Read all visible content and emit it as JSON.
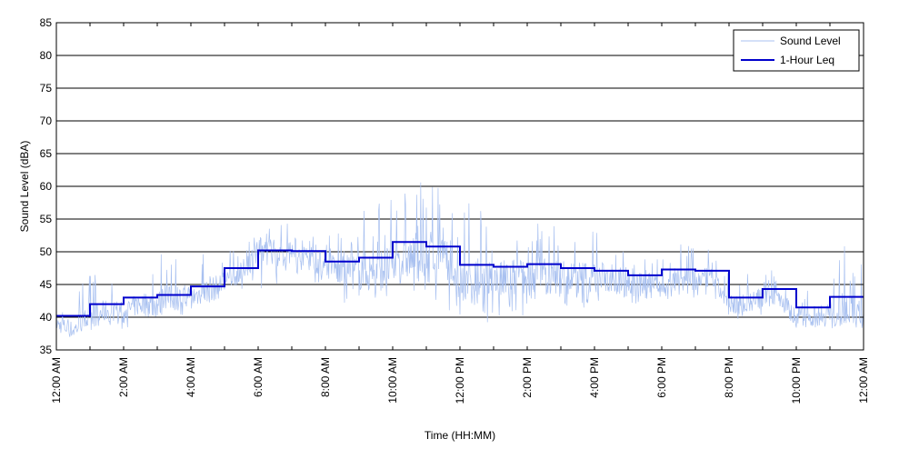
{
  "chart_data": {
    "type": "line",
    "title": "",
    "xlabel": "Time (HH:MM)",
    "ylabel": "Sound Level (dBA)",
    "ylim": [
      35,
      85
    ],
    "yticks": [
      35,
      40,
      45,
      50,
      55,
      60,
      65,
      70,
      75,
      80,
      85
    ],
    "xlim": [
      0,
      24
    ],
    "xticks": [
      0,
      2,
      4,
      6,
      8,
      10,
      12,
      14,
      16,
      18,
      20,
      22,
      24
    ],
    "xtick_labels": [
      "12:00 AM",
      "2:00 AM",
      "4:00 AM",
      "6:00 AM",
      "8:00 AM",
      "10:00 AM",
      "12:00 PM",
      "2:00 PM",
      "4:00 PM",
      "6:00 PM",
      "8:00 PM",
      "10:00 PM",
      "12:00 AM"
    ],
    "grid": "horizontal",
    "legend_position": "top-right",
    "colors": {
      "sound_level": "#a8c0f0",
      "leq": "#0000cc"
    },
    "series": [
      {
        "name": "Sound Level",
        "style": "thin",
        "x": [
          0,
          0.5,
          1,
          1.5,
          2,
          2.5,
          3,
          3.5,
          4,
          4.5,
          5,
          5.5,
          6,
          6.5,
          7,
          7.5,
          8,
          8.5,
          9,
          9.5,
          10,
          10.5,
          11,
          11.5,
          12,
          12.5,
          13,
          13.5,
          14,
          14.5,
          15,
          15.5,
          16,
          16.5,
          17,
          17.5,
          18,
          18.5,
          19,
          19.5,
          20,
          20.5,
          21,
          21.5,
          22,
          22.5,
          23,
          23.5,
          24
        ],
        "values": [
          39,
          38,
          40,
          41,
          41,
          42,
          42,
          43,
          43,
          44,
          45,
          47,
          50,
          50,
          49,
          49,
          48,
          47,
          47,
          47,
          48,
          49,
          49,
          49,
          45,
          45,
          45,
          46,
          46,
          46,
          46,
          46,
          46,
          46,
          45,
          45,
          45,
          46,
          46,
          46,
          42,
          42,
          43,
          43,
          40,
          40,
          41,
          41,
          40
        ],
        "min": [
          36,
          37,
          38,
          38,
          38,
          39,
          39,
          40,
          40,
          41,
          42,
          44,
          44,
          45,
          45,
          44,
          43,
          42,
          42,
          42,
          43,
          43,
          43,
          42,
          39,
          39,
          39,
          40,
          40,
          40,
          41,
          41,
          41,
          41,
          41,
          42,
          42,
          43,
          43,
          43,
          40,
          39,
          40,
          40,
          38,
          38,
          38,
          39,
          38
        ],
        "max": [
          42,
          44,
          47,
          47,
          45,
          48,
          50,
          50,
          50,
          51,
          51,
          51,
          56,
          54,
          55,
          53,
          53,
          54,
          57,
          58,
          60,
          59,
          62,
          60,
          57,
          61,
          55,
          56,
          56,
          55,
          54,
          55,
          54,
          52,
          53,
          51,
          50,
          51,
          52,
          50,
          47,
          47,
          48,
          47,
          46,
          46,
          50,
          51,
          50
        ]
      },
      {
        "name": "1-Hour Leq",
        "style": "step",
        "x": [
          0,
          1,
          2,
          3,
          4,
          5,
          6,
          7,
          8,
          9,
          10,
          11,
          12,
          13,
          14,
          15,
          16,
          17,
          18,
          19,
          20,
          21,
          22,
          23
        ],
        "values": [
          40.2,
          42.0,
          43.0,
          43.4,
          44.7,
          47.5,
          50.2,
          50.1,
          48.5,
          49.1,
          51.5,
          50.8,
          48.0,
          47.7,
          48.1,
          47.5,
          47.1,
          46.4,
          47.3,
          47.1,
          43.0,
          44.3,
          41.5,
          43.1
        ]
      }
    ]
  }
}
